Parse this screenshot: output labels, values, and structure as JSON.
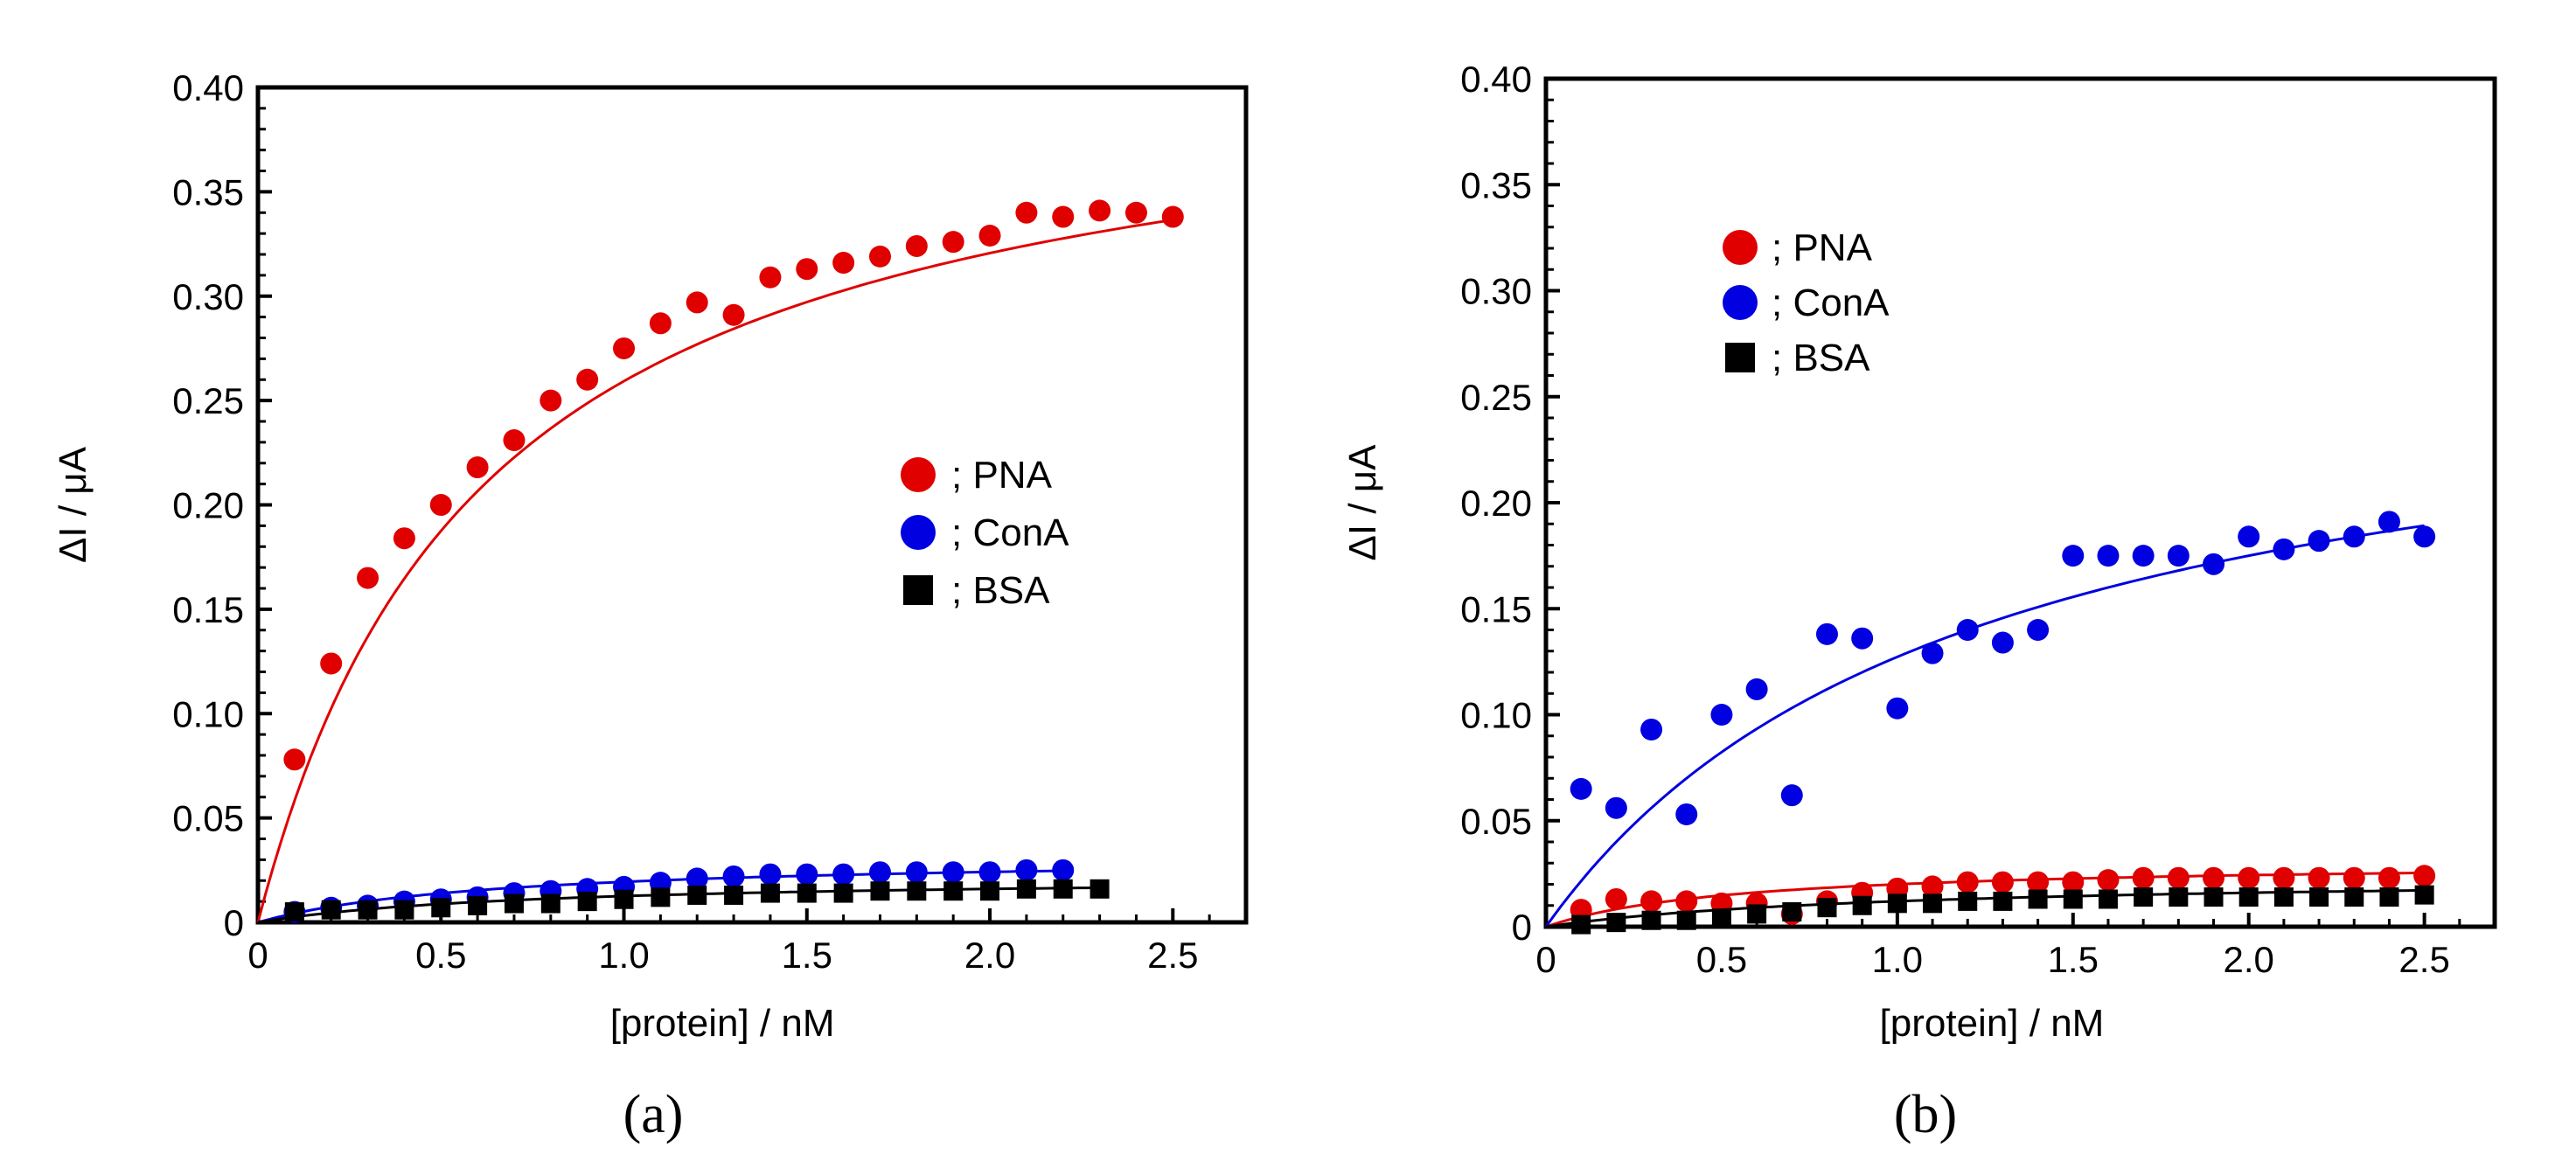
{
  "chart_data": [
    {
      "id": "a",
      "type": "scatter",
      "panel_label": "(a)",
      "panel_letter": "a",
      "xlabel": "[protein] / nM",
      "ylabel": "ΔI / μA",
      "xlim": [
        0,
        2.7
      ],
      "ylim": [
        0,
        0.4
      ],
      "xticks": [
        0,
        0.5,
        1.0,
        1.5,
        2.0,
        2.5
      ],
      "xtick_labels": [
        "0",
        "0.5",
        "1.0",
        "1.5",
        "2.0",
        "2.5"
      ],
      "yticks": [
        0,
        0.05,
        0.1,
        0.15,
        0.2,
        0.25,
        0.3,
        0.35,
        0.4
      ],
      "ytick_labels": [
        "0",
        "0.05",
        "0.10",
        "0.15",
        "0.20",
        "0.25",
        "0.30",
        "0.35",
        "0.40"
      ],
      "legend_position": "middle-right",
      "series": [
        {
          "name": "PNA",
          "legend_label": "; PNA",
          "marker": "circle",
          "color": "#e00000",
          "x": [
            0.1,
            0.2,
            0.3,
            0.4,
            0.5,
            0.6,
            0.7,
            0.8,
            0.9,
            1.0,
            1.1,
            1.2,
            1.3,
            1.4,
            1.5,
            1.6,
            1.7,
            1.8,
            1.9,
            2.0,
            2.1,
            2.2,
            2.3,
            2.4,
            2.5
          ],
          "y": [
            0.078,
            0.124,
            0.165,
            0.184,
            0.2,
            0.218,
            0.231,
            0.25,
            0.26,
            0.275,
            0.287,
            0.297,
            0.291,
            0.309,
            0.313,
            0.316,
            0.319,
            0.324,
            0.326,
            0.329,
            0.34,
            0.338,
            0.341,
            0.34,
            0.338
          ],
          "fit": {
            "model": "saturation",
            "ymax": 0.42,
            "k": 0.62,
            "xmax": 2.5
          }
        },
        {
          "name": "ConA",
          "legend_label": "; ConA",
          "marker": "circle",
          "color": "#0000e0",
          "x": [
            0.1,
            0.2,
            0.3,
            0.4,
            0.5,
            0.6,
            0.7,
            0.8,
            0.9,
            1.0,
            1.1,
            1.2,
            1.3,
            1.4,
            1.5,
            1.6,
            1.7,
            1.8,
            1.9,
            2.0,
            2.1,
            2.2
          ],
          "y": [
            0.005,
            0.007,
            0.008,
            0.01,
            0.011,
            0.012,
            0.014,
            0.015,
            0.016,
            0.017,
            0.019,
            0.021,
            0.022,
            0.023,
            0.023,
            0.023,
            0.024,
            0.024,
            0.024,
            0.024,
            0.025,
            0.025
          ],
          "fit": {
            "model": "saturation",
            "ymax": 0.032,
            "k": 0.65,
            "xmax": 2.2
          }
        },
        {
          "name": "BSA",
          "legend_label": "; BSA",
          "marker": "square",
          "color": "#000000",
          "x": [
            0.1,
            0.2,
            0.3,
            0.4,
            0.5,
            0.6,
            0.7,
            0.8,
            0.9,
            1.0,
            1.1,
            1.2,
            1.3,
            1.4,
            1.5,
            1.6,
            1.7,
            1.8,
            1.9,
            2.0,
            2.1,
            2.2,
            2.3
          ],
          "y": [
            0.005,
            0.006,
            0.006,
            0.006,
            0.007,
            0.008,
            0.009,
            0.009,
            0.01,
            0.011,
            0.012,
            0.013,
            0.013,
            0.014,
            0.014,
            0.014,
            0.015,
            0.015,
            0.015,
            0.015,
            0.016,
            0.016,
            0.016
          ],
          "fit": {
            "model": "saturation",
            "ymax": 0.022,
            "k": 0.75,
            "xmax": 2.3
          }
        }
      ]
    },
    {
      "id": "b",
      "type": "scatter",
      "panel_label": "(b)",
      "panel_letter": "b",
      "xlabel": "[protein] / nM",
      "ylabel": "ΔI / μA",
      "xlim": [
        0,
        2.7
      ],
      "ylim": [
        0,
        0.4
      ],
      "xticks": [
        0,
        0.5,
        1.0,
        1.5,
        2.0,
        2.5
      ],
      "xtick_labels": [
        "0",
        "0.5",
        "1.0",
        "1.5",
        "2.0",
        "2.5"
      ],
      "yticks": [
        0,
        0.05,
        0.1,
        0.15,
        0.2,
        0.25,
        0.3,
        0.35,
        0.4
      ],
      "ytick_labels": [
        "0",
        "0.05",
        "0.10",
        "0.15",
        "0.20",
        "0.25",
        "0.30",
        "0.35",
        "0.40"
      ],
      "legend_position": "upper-left",
      "series": [
        {
          "name": "PNA",
          "legend_label": "; PNA",
          "marker": "circle",
          "color": "#e00000",
          "x": [
            0.1,
            0.2,
            0.3,
            0.4,
            0.5,
            0.6,
            0.7,
            0.8,
            0.9,
            1.0,
            1.1,
            1.2,
            1.3,
            1.4,
            1.5,
            1.6,
            1.7,
            1.8,
            1.9,
            2.0,
            2.1,
            2.2,
            2.3,
            2.4,
            2.5
          ],
          "y": [
            0.008,
            0.013,
            0.012,
            0.012,
            0.011,
            0.011,
            0.006,
            0.012,
            0.016,
            0.018,
            0.019,
            0.021,
            0.021,
            0.021,
            0.021,
            0.022,
            0.023,
            0.023,
            0.023,
            0.023,
            0.023,
            0.023,
            0.023,
            0.023,
            0.024
          ],
          "fit": {
            "model": "saturation",
            "ymax": 0.031,
            "k": 0.55,
            "xmax": 2.5
          }
        },
        {
          "name": "ConA",
          "legend_label": "; ConA",
          "marker": "circle",
          "color": "#0000e0",
          "x": [
            0.1,
            0.2,
            0.3,
            0.4,
            0.5,
            0.6,
            0.7,
            0.8,
            0.9,
            1.0,
            1.1,
            1.2,
            1.3,
            1.4,
            1.5,
            1.6,
            1.7,
            1.8,
            1.9,
            2.0,
            2.1,
            2.2,
            2.3,
            2.4,
            2.5
          ],
          "y": [
            0.065,
            0.056,
            0.093,
            0.053,
            0.1,
            0.112,
            0.062,
            0.138,
            0.136,
            0.103,
            0.129,
            0.14,
            0.134,
            0.14,
            0.175,
            0.175,
            0.175,
            0.175,
            0.171,
            0.184,
            0.178,
            0.182,
            0.184,
            0.191,
            0.184
          ],
          "fit": {
            "model": "saturation",
            "ymax": 0.28,
            "k": 1.2,
            "xmax": 2.5
          }
        },
        {
          "name": "BSA",
          "legend_label": "; BSA",
          "marker": "square",
          "color": "#000000",
          "x": [
            0.1,
            0.2,
            0.3,
            0.4,
            0.5,
            0.6,
            0.7,
            0.8,
            0.9,
            1.0,
            1.1,
            1.2,
            1.3,
            1.4,
            1.5,
            1.6,
            1.7,
            1.8,
            1.9,
            2.0,
            2.1,
            2.2,
            2.3,
            2.4,
            2.5
          ],
          "y": [
            0.001,
            0.002,
            0.003,
            0.003,
            0.004,
            0.006,
            0.007,
            0.009,
            0.01,
            0.011,
            0.011,
            0.012,
            0.012,
            0.013,
            0.013,
            0.013,
            0.014,
            0.014,
            0.014,
            0.014,
            0.014,
            0.014,
            0.014,
            0.014,
            0.015
          ],
          "fit": {
            "model": "saturation",
            "ymax": 0.024,
            "k": 1.0,
            "xmax": 2.5
          }
        }
      ]
    }
  ]
}
